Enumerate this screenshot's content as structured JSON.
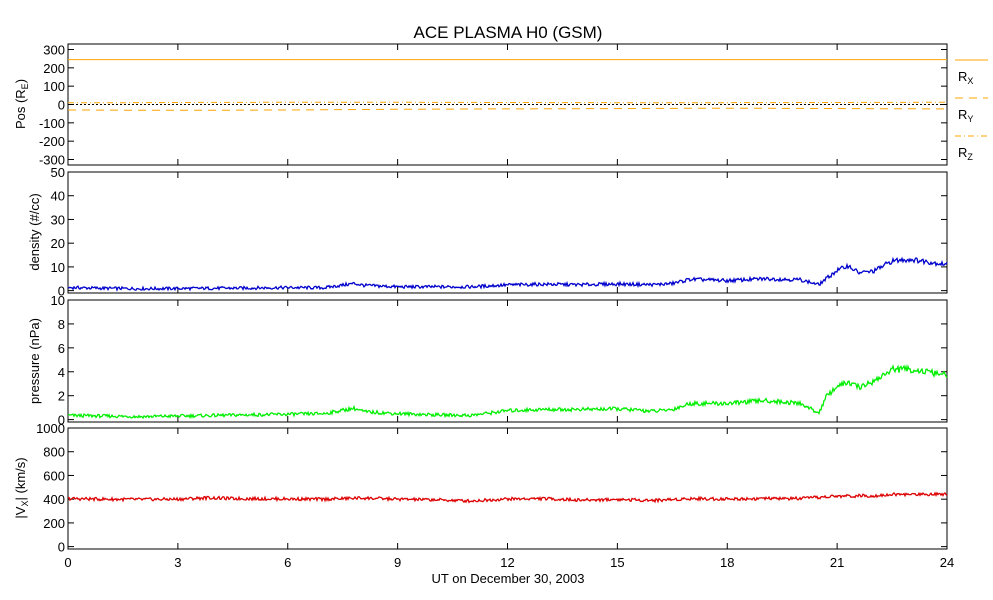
{
  "chart_data": {
    "title": "ACE PLASMA H0 (GSM)",
    "xlabel": "UT on December 30, 2003",
    "x_ticks": [
      "0",
      "3",
      "6",
      "9",
      "12",
      "15",
      "18",
      "21",
      "24"
    ],
    "xlim": [
      0,
      24
    ],
    "panels": [
      {
        "type": "line",
        "ylabel_main": "Pos (R",
        "ylabel_sub": "E",
        "ylabel_end": ")",
        "ylim": [
          -330,
          330
        ],
        "y_ticks": [
          300,
          200,
          100,
          0,
          -100,
          -200,
          -300
        ],
        "y_tick_labels": [
          "300",
          "200",
          "100",
          "0",
          "-100",
          "-200",
          "-300"
        ],
        "series": [
          {
            "name": "R",
            "sub": "X",
            "color": "#ffa500",
            "dash": "solid",
            "x": [
              0,
              24
            ],
            "values": [
              245,
              245
            ]
          },
          {
            "name": "R",
            "sub": "Y",
            "color": "#ffa500",
            "dash": "dashed",
            "x": [
              0,
              3,
              6,
              9,
              12,
              15,
              18,
              21,
              24
            ],
            "values": [
              -30,
              -32,
              -30,
              -26,
              -24,
              -22,
              -20,
              -22,
              -24
            ]
          },
          {
            "name": "R",
            "sub": "Z",
            "color": "#ffa500",
            "dash": "dashdot",
            "x": [
              0,
              3,
              6,
              9,
              12,
              15,
              18,
              21,
              24
            ],
            "values": [
              9,
              11,
              12,
              12,
              11,
              10,
              10,
              11,
              12
            ]
          }
        ],
        "zero_line": true
      },
      {
        "type": "line",
        "ylabel_main": "density (#/cc)",
        "ylim": [
          -1,
          50
        ],
        "y_ticks": [
          50,
          40,
          30,
          20,
          10,
          0
        ],
        "y_tick_labels": [
          "50",
          "40",
          "30",
          "20",
          "10",
          "0"
        ],
        "series": [
          {
            "color": "#0000cc",
            "x": [
              0,
              1,
              2,
              3,
              4,
              5,
              6,
              7,
              7.8,
              8.1,
              9,
              10,
              11,
              12,
              13,
              14,
              15,
              16,
              16.5,
              17,
              18,
              19,
              20,
              20.5,
              20.7,
              21,
              21.3,
              21.6,
              22,
              22.5,
              23,
              24
            ],
            "values": [
              1.3,
              1.0,
              0.8,
              0.9,
              1.0,
              1.1,
              1.3,
              1.2,
              3.0,
              2.2,
              1.6,
              1.6,
              1.6,
              2.4,
              2.7,
              2.5,
              2.8,
              2.5,
              3.0,
              4.8,
              4.2,
              5.0,
              4.6,
              2.5,
              5.0,
              8.5,
              10.5,
              7.5,
              8.2,
              12.5,
              13.2,
              11.0
            ]
          }
        ]
      },
      {
        "type": "line",
        "ylabel_main": "pressure (nPa)",
        "ylim": [
          -0.2,
          10
        ],
        "y_ticks": [
          10,
          8,
          6,
          4,
          2,
          0
        ],
        "y_tick_labels": [
          "10",
          "8",
          "6",
          "4",
          "2",
          "0"
        ],
        "series": [
          {
            "color": "#00ee00",
            "x": [
              0,
              1,
              2,
              3,
              4,
              5,
              6,
              7,
              7.8,
              8.1,
              9,
              10,
              11,
              12,
              13,
              14,
              15,
              16,
              16.5,
              17,
              18,
              19,
              20,
              20.5,
              20.7,
              21,
              21.3,
              21.6,
              22,
              22.5,
              23,
              24
            ],
            "values": [
              0.35,
              0.3,
              0.25,
              0.3,
              0.35,
              0.4,
              0.45,
              0.5,
              0.95,
              0.65,
              0.5,
              0.4,
              0.35,
              0.75,
              0.85,
              0.85,
              0.9,
              0.7,
              0.85,
              1.35,
              1.35,
              1.6,
              1.35,
              0.55,
              1.9,
              2.8,
              3.1,
              2.7,
              3.2,
              4.2,
              4.2,
              3.7
            ]
          }
        ]
      },
      {
        "type": "line",
        "ylabel_main": "|V",
        "ylabel_sub": "X",
        "ylabel_end": "| (km/s)",
        "ylim": [
          -20,
          1000
        ],
        "y_ticks": [
          1000,
          800,
          600,
          400,
          200,
          0
        ],
        "y_tick_labels": [
          "1000",
          "800",
          "600",
          "400",
          "200",
          "0"
        ],
        "series": [
          {
            "color": "#dd0000",
            "x": [
              0,
              1,
              2,
              3,
              3.8,
              4.5,
              6,
              7,
              8,
              9,
              10,
              11,
              12,
              13,
              14,
              15,
              16,
              17,
              18,
              19,
              20,
              21,
              22,
              22.5,
              23,
              24
            ],
            "values": [
              405,
              400,
              398,
              400,
              412,
              405,
              402,
              400,
              410,
              400,
              395,
              385,
              402,
              405,
              392,
              398,
              390,
              405,
              402,
              405,
              405,
              425,
              430,
              440,
              440,
              445
            ]
          }
        ]
      }
    ]
  }
}
